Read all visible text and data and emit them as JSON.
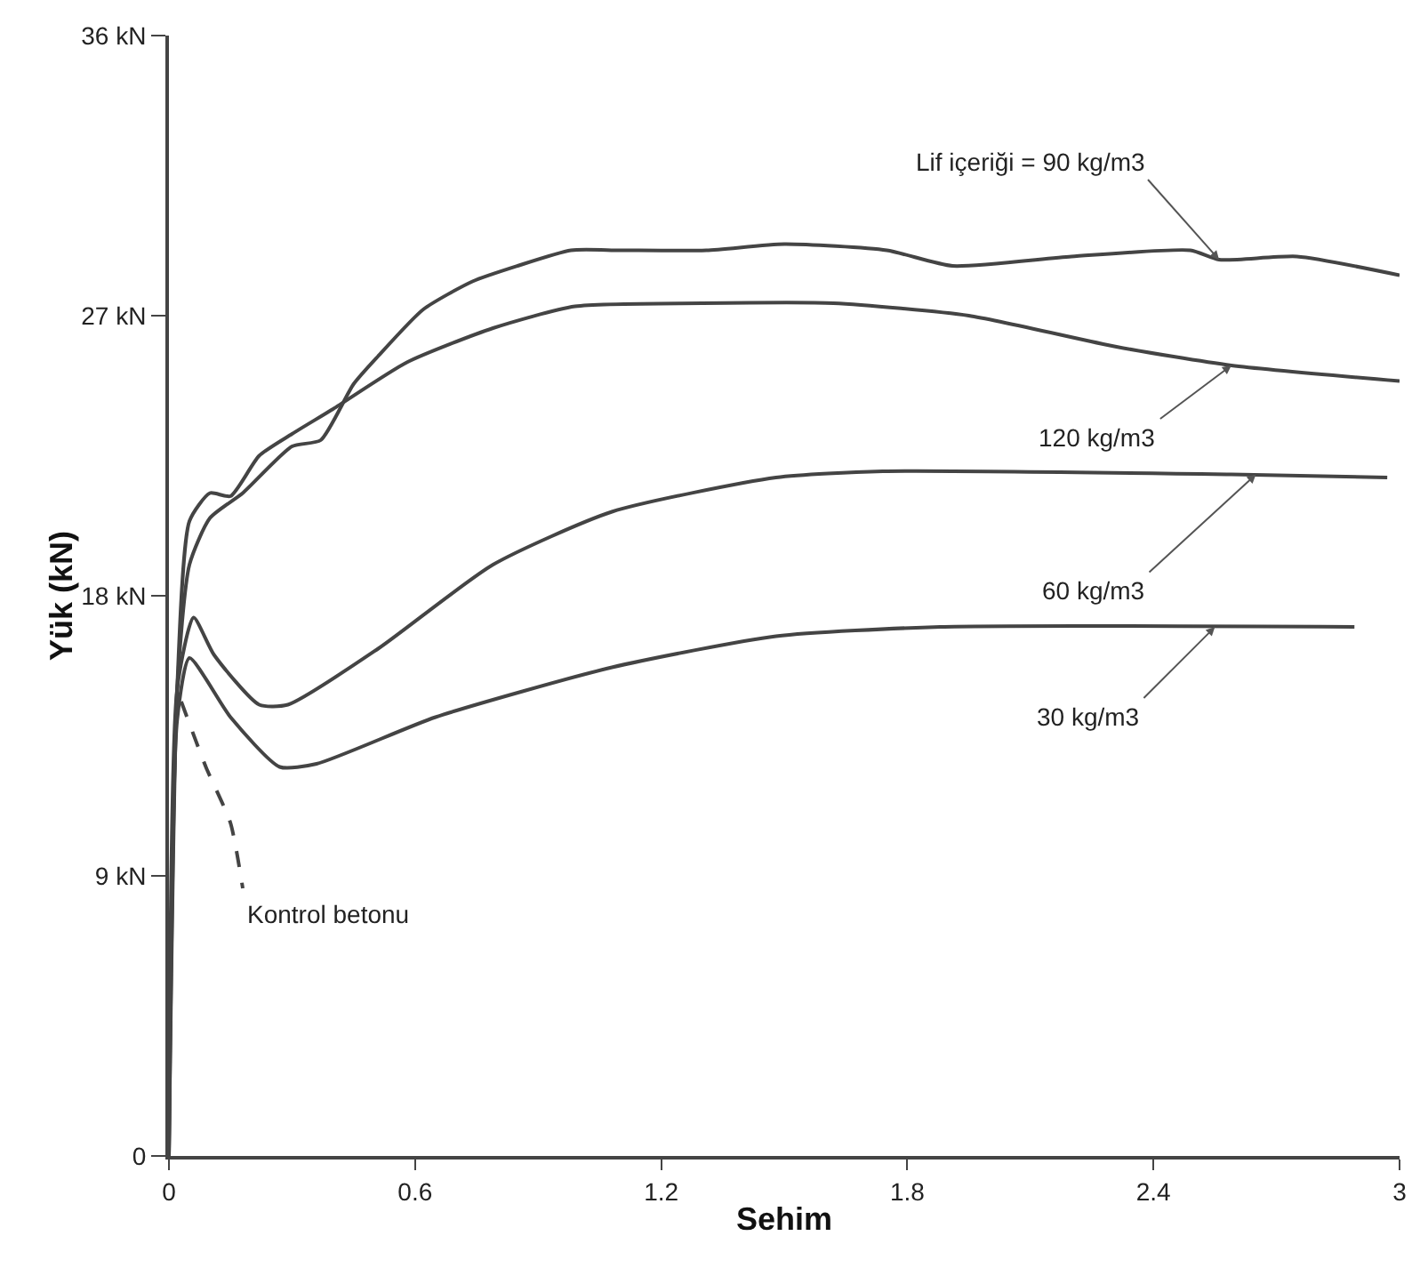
{
  "chart_data": {
    "type": "line",
    "xlabel": "Sehim",
    "ylabel": "Yük (kN)",
    "xlim": [
      0,
      3
    ],
    "ylim": [
      0,
      36
    ],
    "xticks": [
      0,
      0.6,
      1.2,
      1.8,
      2.4,
      3
    ],
    "yticks": [
      0,
      {
        "value": 9,
        "label": "9 kN"
      },
      {
        "value": 18,
        "label": "18 kN"
      },
      {
        "value": 27,
        "label": "27 kN"
      },
      {
        "value": 36,
        "label": "36 kN"
      }
    ],
    "series": [
      {
        "color": "#444444",
        "line_style": "solid",
        "x": [
          0,
          0.02,
          0.05,
          0.1,
          0.18,
          0.3,
          0.37,
          0.45,
          0.51,
          0.62,
          0.74,
          0.85,
          0.98,
          1.1,
          1.31,
          1.5,
          1.75,
          1.91,
          2.2,
          2.49,
          2.56,
          2.75,
          3.0
        ],
        "values": [
          0,
          15,
          19,
          20.5,
          21.3,
          22.8,
          23.0,
          24.8,
          25.7,
          27.2,
          28.1,
          28.6,
          29.1,
          29.1,
          29.1,
          29.3,
          29.1,
          28.6,
          28.9,
          29.1,
          28.8,
          28.9,
          28.3
        ]
      },
      {
        "color": "#444444",
        "line_style": "solid",
        "x": [
          0,
          0.02,
          0.05,
          0.1,
          0.15,
          0.22,
          0.3,
          0.4,
          0.58,
          0.79,
          0.99,
          1.3,
          1.62,
          1.95,
          2.31,
          2.59,
          3.0
        ],
        "values": [
          0,
          15,
          20.4,
          21.3,
          21.2,
          22.5,
          23.2,
          24.0,
          25.5,
          26.6,
          27.3,
          27.4,
          27.4,
          27.0,
          26.0,
          25.4,
          24.9
        ]
      },
      {
        "color": "#444444",
        "line_style": "solid",
        "x": [
          0,
          0.02,
          0.06,
          0.11,
          0.22,
          0.29,
          0.51,
          0.79,
          1.08,
          1.48,
          1.74,
          2.59,
          2.97
        ],
        "values": [
          0,
          15,
          17.3,
          16.1,
          14.5,
          14.5,
          16.3,
          19.0,
          20.7,
          21.8,
          22.0,
          21.9,
          21.8
        ]
      },
      {
        "color": "#444444",
        "line_style": "solid",
        "x": [
          0,
          0.02,
          0.05,
          0.15,
          0.27,
          0.36,
          0.65,
          1.08,
          1.48,
          1.88,
          2.89
        ],
        "values": [
          0,
          14,
          16.0,
          14.1,
          12.5,
          12.6,
          14.1,
          15.7,
          16.7,
          17.0,
          17.0
        ]
      },
      {
        "color": "#444444",
        "line_style": "dashed",
        "x": [
          0.03,
          0.09,
          0.15,
          0.18
        ],
        "values": [
          14.6,
          12.5,
          10.7,
          8.6
        ]
      }
    ],
    "annotations": [
      {
        "text": "Lif içeriği = 90 kg/m3",
        "x": 2.56,
        "y": 28.8
      },
      {
        "text": "120 kg/m3",
        "x": 2.59,
        "y": 25.4
      },
      {
        "text": "60 kg/m3",
        "x": 2.65,
        "y": 21.9
      },
      {
        "text": "30 kg/m3",
        "x": 2.55,
        "y": 17.0
      },
      {
        "text": "Kontrol betonu",
        "x": 0.18,
        "y": 8.6
      }
    ]
  }
}
